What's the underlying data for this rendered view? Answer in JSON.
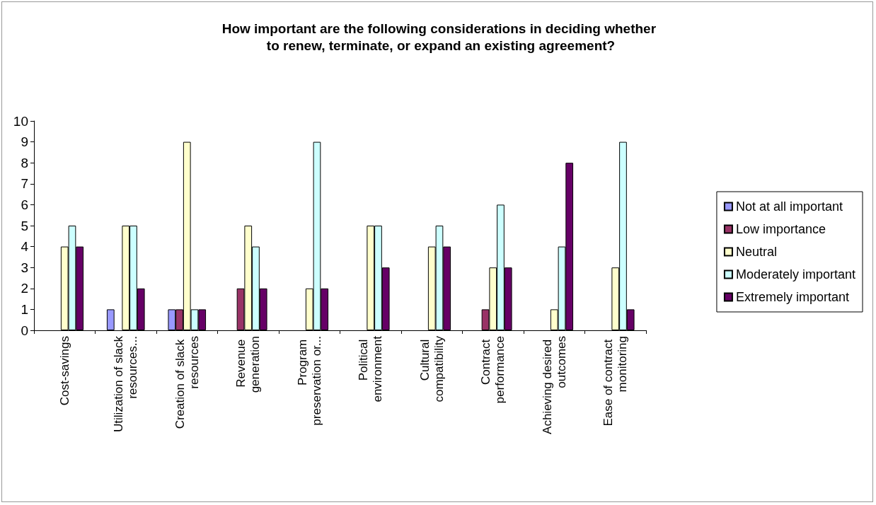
{
  "chart_data": {
    "type": "bar",
    "title": "How important are the following considerations in deciding whether to renew, terminate, or expand an existing agreement?",
    "categories": [
      "Cost-savings",
      "Utilization of slack resources...",
      "Creation of slack resources",
      "Revenue generation",
      "Program preservation or...",
      "Political environment",
      "Cultural compatibility",
      "Contract performance",
      "Achieving desired outcomes",
      "Ease of contract monitoring"
    ],
    "series": [
      {
        "name": "Not at all important",
        "color": "#9999ff",
        "values": [
          0,
          1,
          1,
          0,
          0,
          0,
          0,
          0,
          0,
          0
        ]
      },
      {
        "name": "Low importance",
        "color": "#993366",
        "values": [
          0,
          0,
          1,
          2,
          0,
          0,
          0,
          1,
          0,
          0
        ]
      },
      {
        "name": "Neutral",
        "color": "#ffffcc",
        "values": [
          4,
          5,
          9,
          5,
          2,
          5,
          4,
          3,
          1,
          3
        ]
      },
      {
        "name": "Moderately important",
        "color": "#ccffff",
        "values": [
          5,
          5,
          1,
          4,
          9,
          5,
          5,
          6,
          4,
          9
        ]
      },
      {
        "name": "Extremely important",
        "color": "#660066",
        "values": [
          4,
          2,
          1,
          2,
          2,
          3,
          4,
          3,
          8,
          1
        ]
      }
    ],
    "ylim": [
      0,
      10
    ],
    "yticks": [
      0,
      1,
      2,
      3,
      4,
      5,
      6,
      7,
      8,
      9,
      10
    ],
    "grid": false,
    "legend": "right"
  }
}
